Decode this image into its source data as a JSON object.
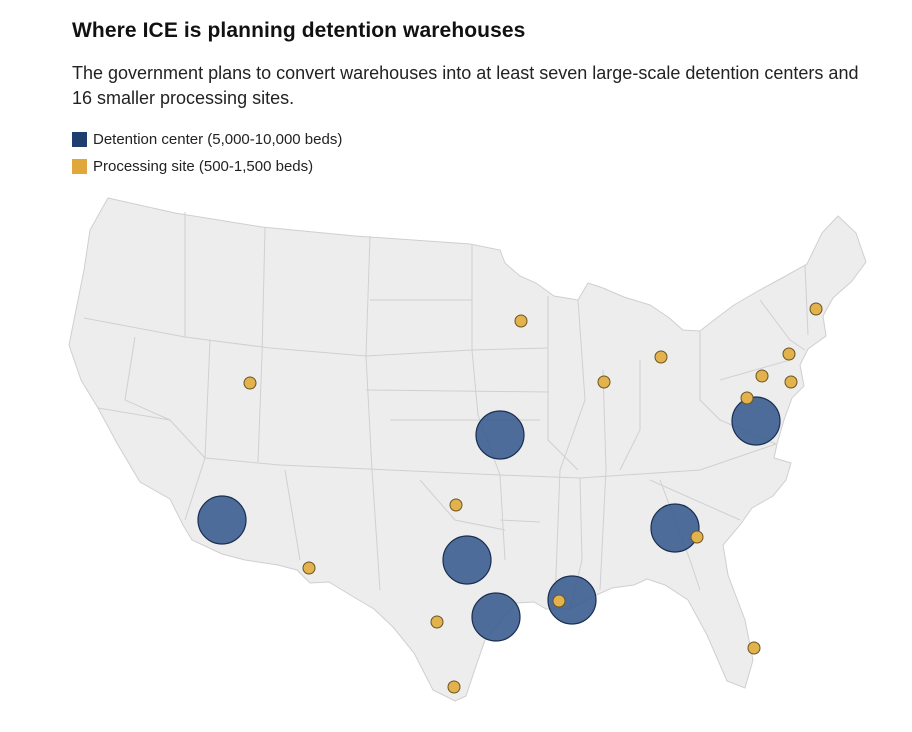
{
  "header": {
    "title": "Where ICE is planning detention warehouses",
    "subtitle": "The government plans to convert warehouses into at least seven large-scale detention centers and 16 smaller processing sites."
  },
  "legend": {
    "items": [
      {
        "label": "Detention center (5,000-10,000 beds)",
        "color": "#1f3d6e"
      },
      {
        "label": "Processing site (500-1,500 beds)",
        "color": "#e0a73a"
      }
    ]
  },
  "map": {
    "region": "Contiguous United States",
    "land_color": "#ededed",
    "border_color": "#cfcfcf",
    "detention_center_color": "#3c5d90",
    "processing_site_color": "#e2b24d",
    "detention_centers": [
      {
        "area": "Arizona (Phoenix area)"
      },
      {
        "area": "Kansas City area"
      },
      {
        "area": "East Texas"
      },
      {
        "area": "South Texas"
      },
      {
        "area": "Louisiana"
      },
      {
        "area": "Georgia (Atlanta area)"
      },
      {
        "area": "Virginia"
      }
    ],
    "processing_sites": [
      {
        "area": "Utah"
      },
      {
        "area": "Minnesota"
      },
      {
        "area": "Illinois"
      },
      {
        "area": "Michigan"
      },
      {
        "area": "New Hampshire"
      },
      {
        "area": "New York"
      },
      {
        "area": "Pennsylvania"
      },
      {
        "area": "New Jersey"
      },
      {
        "area": "Maryland"
      },
      {
        "area": "Oklahoma"
      },
      {
        "area": "West Texas"
      },
      {
        "area": "South Texas"
      },
      {
        "area": "Texas border"
      },
      {
        "area": "Louisiana"
      },
      {
        "area": "Georgia"
      },
      {
        "area": "South Florida"
      }
    ]
  }
}
